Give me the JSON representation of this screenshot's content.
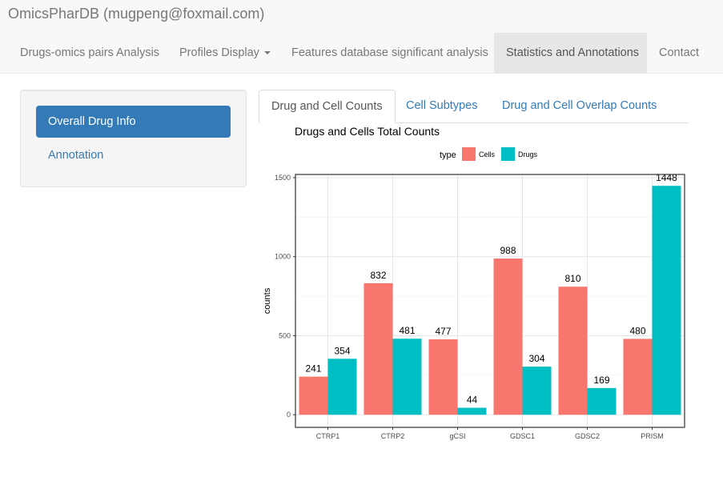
{
  "app": {
    "brand": "OmicsPharDB (mugpeng@foxmail.com)"
  },
  "nav": {
    "items": [
      {
        "label": "Drugs-omics pairs Analysis"
      },
      {
        "label": "Profiles Display"
      },
      {
        "label": "Features database significant analysis"
      },
      {
        "label": "Statistics and Annotations"
      },
      {
        "label": "Contact"
      }
    ]
  },
  "sidebar": {
    "items": [
      {
        "label": "Overall Drug Info"
      },
      {
        "label": "Annotation"
      }
    ]
  },
  "tabs": [
    {
      "label": "Drug and Cell Counts"
    },
    {
      "label": "Cell Subtypes"
    },
    {
      "label": "Drug and Cell Overlap Counts"
    }
  ],
  "chart_data": {
    "type": "bar",
    "title": "Drugs and Cells Total Counts",
    "xlabel": "",
    "ylabel": "counts",
    "legend_title": "type",
    "legend_position": "top",
    "grid": true,
    "categories": [
      "CTRP1",
      "CTRP2",
      "gCSI",
      "GDSC1",
      "GDSC2",
      "PRISM"
    ],
    "series": [
      {
        "name": "Cells",
        "color": "#f8766d",
        "values": [
          241,
          832,
          477,
          988,
          810,
          480
        ]
      },
      {
        "name": "Drugs",
        "color": "#00bfc4",
        "values": [
          354,
          481,
          44,
          304,
          169,
          1448
        ]
      }
    ],
    "yticks": [
      0,
      500,
      1000,
      1500
    ],
    "ylim": [
      0,
      1500
    ]
  }
}
